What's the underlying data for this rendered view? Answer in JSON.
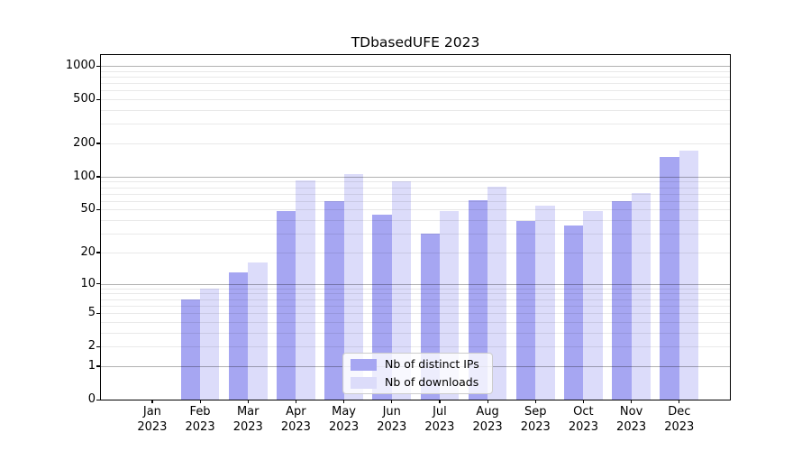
{
  "chart_data": {
    "type": "bar",
    "title": "TDbasedUFE 2023",
    "x_categories": [
      "Jan",
      "Feb",
      "Mar",
      "Apr",
      "May",
      "Jun",
      "Jul",
      "Aug",
      "Sep",
      "Oct",
      "Nov",
      "Dec"
    ],
    "x_year_line": "2023",
    "series": [
      {
        "name": "Nb of distinct IPs",
        "color": "#a6a6f2",
        "values": [
          0,
          7,
          13,
          49,
          60,
          45,
          30,
          61,
          39,
          36,
          60,
          150
        ]
      },
      {
        "name": "Nb of downloads",
        "color": "#dcdcfa",
        "values": [
          0,
          9,
          16,
          92,
          105,
          91,
          49,
          81,
          54,
          49,
          71,
          173
        ]
      }
    ],
    "y_scale": "log10(value+1)",
    "y_ticks": [
      0,
      1,
      2,
      5,
      10,
      20,
      50,
      100,
      200,
      500,
      1000
    ],
    "y_lim": [
      0,
      1250
    ],
    "grid": "horizontal",
    "legend_position": "bottom-center-inside"
  },
  "colors": {
    "bar_distinct_ips": "#a6a6f2",
    "bar_downloads": "#dcdcfa",
    "grid_minor": "#e9e9e9",
    "grid_major": "#b3b3b3",
    "spine": "#000000",
    "background": "#ffffff"
  }
}
